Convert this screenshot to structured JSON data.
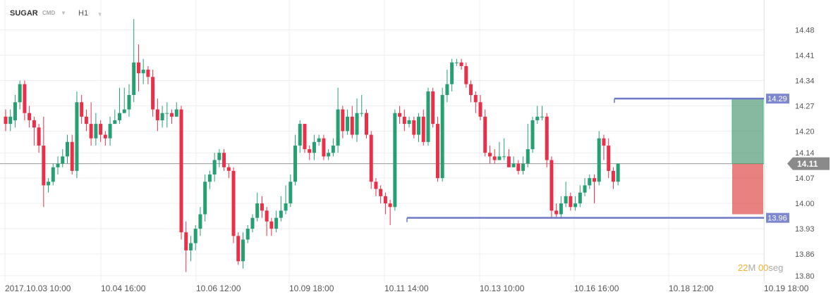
{
  "header": {
    "symbol": "SUGAR",
    "market": "CMD",
    "timeframe": "H1"
  },
  "timer": {
    "minutes": "22",
    "minutes_unit": "M",
    "seconds": "00",
    "seconds_unit": "seg"
  },
  "chart_data": {
    "type": "candlestick",
    "title": "",
    "y_ticks": [
      14.48,
      14.41,
      14.34,
      14.27,
      14.2,
      14.14,
      14.07,
      14.0,
      13.93,
      13.86,
      13.8
    ],
    "ylim": [
      13.79,
      14.52
    ],
    "x_labels": [
      "2017.10.03 10:00",
      "10.04 16:00",
      "10.06 12:00",
      "10.09 18:00",
      "10.11 14:00",
      "10.13 10:00",
      "10.16 16:00",
      "10.18 12:00",
      "10.19 18:00"
    ],
    "grid": true,
    "colors": {
      "up": "#26a073",
      "down": "#ea2f49",
      "level_line": "#6d79c8",
      "level_label_bg": "#7e88cf",
      "current_label_bg": "#8a8a8a",
      "tp_zone": "#3d8c66",
      "sl_zone": "#e04545"
    },
    "current_price": 14.11,
    "levels": [
      {
        "label": "14.29",
        "value": 14.29
      },
      {
        "label": "13.96",
        "value": 13.96
      }
    ],
    "position": {
      "entry": 14.11,
      "take_profit": 14.29,
      "stop_loss": 13.97
    },
    "candles": [
      [
        14.24,
        14.22,
        14.26,
        14.2
      ],
      [
        14.22,
        14.24,
        14.26,
        14.2
      ],
      [
        14.23,
        14.28,
        14.3,
        14.21
      ],
      [
        14.28,
        14.33,
        14.34,
        14.26
      ],
      [
        14.33,
        14.25,
        14.34,
        14.23
      ],
      [
        14.25,
        14.23,
        14.27,
        14.21
      ],
      [
        14.23,
        14.21,
        14.24,
        14.16
      ],
      [
        14.21,
        14.16,
        14.22,
        14.14
      ],
      [
        14.16,
        14.05,
        14.24,
        13.99
      ],
      [
        14.05,
        14.06,
        14.07,
        14.03
      ],
      [
        14.06,
        14.1,
        14.11,
        14.05
      ],
      [
        14.1,
        14.11,
        14.13,
        14.08
      ],
      [
        14.11,
        14.13,
        14.15,
        14.1
      ],
      [
        14.13,
        14.17,
        14.19,
        14.11
      ],
      [
        14.17,
        14.09,
        14.19,
        14.08
      ],
      [
        14.09,
        14.28,
        14.31,
        14.07
      ],
      [
        14.28,
        14.24,
        14.3,
        14.22
      ],
      [
        14.24,
        14.22,
        14.26,
        14.2
      ],
      [
        14.22,
        14.18,
        14.28,
        14.16
      ],
      [
        14.18,
        14.22,
        14.25,
        14.16
      ],
      [
        14.22,
        14.19,
        14.23,
        14.17
      ],
      [
        14.19,
        14.18,
        14.2,
        14.16
      ],
      [
        14.18,
        14.22,
        14.24,
        14.16
      ],
      [
        14.22,
        14.23,
        14.26,
        14.22
      ],
      [
        14.23,
        14.25,
        14.32,
        14.22
      ],
      [
        14.25,
        14.26,
        14.32,
        14.25
      ],
      [
        14.26,
        14.3,
        14.33,
        14.24
      ],
      [
        14.3,
        14.39,
        14.51,
        14.28
      ],
      [
        14.39,
        14.36,
        14.44,
        14.31
      ],
      [
        14.36,
        14.37,
        14.4,
        14.33
      ],
      [
        14.37,
        14.35,
        14.38,
        14.33
      ],
      [
        14.35,
        14.26,
        14.37,
        14.24
      ],
      [
        14.26,
        14.23,
        14.29,
        14.2
      ],
      [
        14.23,
        14.25,
        14.27,
        14.21
      ],
      [
        14.25,
        14.25,
        14.28,
        14.21
      ],
      [
        14.25,
        14.24,
        14.26,
        14.22
      ],
      [
        14.24,
        14.26,
        14.28,
        14.24
      ],
      [
        14.26,
        13.92,
        14.27,
        13.9
      ],
      [
        13.92,
        13.87,
        13.95,
        13.81
      ],
      [
        13.87,
        13.89,
        13.91,
        13.84
      ],
      [
        13.89,
        13.93,
        13.94,
        13.87
      ],
      [
        13.93,
        13.97,
        13.99,
        13.91
      ],
      [
        13.97,
        14.06,
        14.08,
        13.95
      ],
      [
        14.06,
        14.08,
        14.09,
        14.04
      ],
      [
        14.08,
        14.12,
        14.14,
        14.06
      ],
      [
        14.12,
        14.14,
        14.15,
        14.1
      ],
      [
        14.14,
        14.1,
        14.15,
        14.09
      ],
      [
        14.1,
        14.09,
        14.11,
        14.07
      ],
      [
        14.09,
        13.91,
        14.1,
        13.89
      ],
      [
        13.91,
        13.84,
        13.92,
        13.83
      ],
      [
        13.84,
        13.9,
        13.92,
        13.82
      ],
      [
        13.9,
        13.93,
        13.94,
        13.89
      ],
      [
        13.93,
        13.96,
        13.97,
        13.92
      ],
      [
        13.96,
        14.0,
        14.03,
        13.95
      ],
      [
        14.0,
        13.98,
        14.02,
        13.96
      ],
      [
        13.98,
        13.95,
        13.99,
        13.91
      ],
      [
        13.95,
        13.93,
        13.96,
        13.91
      ],
      [
        13.93,
        13.96,
        13.98,
        13.92
      ],
      [
        13.96,
        13.98,
        14.02,
        13.95
      ],
      [
        13.98,
        14.0,
        14.05,
        13.97
      ],
      [
        14.0,
        14.06,
        14.08,
        13.99
      ],
      [
        14.06,
        14.16,
        14.19,
        14.05
      ],
      [
        14.16,
        14.22,
        14.23,
        14.14
      ],
      [
        14.22,
        14.15,
        14.22,
        14.14
      ],
      [
        14.15,
        14.14,
        14.16,
        14.12
      ],
      [
        14.14,
        14.17,
        14.19,
        14.12
      ],
      [
        14.17,
        14.18,
        14.19,
        14.16
      ],
      [
        14.18,
        14.13,
        14.19,
        14.12
      ],
      [
        14.13,
        14.14,
        14.15,
        14.12
      ],
      [
        14.14,
        14.16,
        14.18,
        14.13
      ],
      [
        14.16,
        14.26,
        14.32,
        14.14
      ],
      [
        14.26,
        14.2,
        14.27,
        14.18
      ],
      [
        14.2,
        14.24,
        14.26,
        14.19
      ],
      [
        14.24,
        14.19,
        14.27,
        14.18
      ],
      [
        14.19,
        14.25,
        14.29,
        14.17
      ],
      [
        14.25,
        14.25,
        14.3,
        14.24
      ],
      [
        14.25,
        14.19,
        14.26,
        14.18
      ],
      [
        14.19,
        14.06,
        14.2,
        14.04
      ],
      [
        14.06,
        14.04,
        14.07,
        14.02
      ],
      [
        14.04,
        14.02,
        14.05,
        14.0
      ],
      [
        14.02,
        14.0,
        14.03,
        13.97
      ],
      [
        14.0,
        13.99,
        14.01,
        13.94
      ],
      [
        13.99,
        14.25,
        14.26,
        13.98
      ],
      [
        14.25,
        14.24,
        14.27,
        14.22
      ],
      [
        14.24,
        14.22,
        14.26,
        14.2
      ],
      [
        14.22,
        14.23,
        14.24,
        14.21
      ],
      [
        14.23,
        14.19,
        14.24,
        14.18
      ],
      [
        14.19,
        14.24,
        14.25,
        14.17
      ],
      [
        14.24,
        14.17,
        14.26,
        14.16
      ],
      [
        14.17,
        14.31,
        14.32,
        14.16
      ],
      [
        14.31,
        14.22,
        14.32,
        14.21
      ],
      [
        14.22,
        14.07,
        14.24,
        14.06
      ],
      [
        14.07,
        14.3,
        14.32,
        14.06
      ],
      [
        14.3,
        14.33,
        14.37,
        14.28
      ],
      [
        14.33,
        14.39,
        14.4,
        14.31
      ],
      [
        14.39,
        14.39,
        14.4,
        14.38
      ],
      [
        14.39,
        14.38,
        14.4,
        14.37
      ],
      [
        14.38,
        14.33,
        14.39,
        14.32
      ],
      [
        14.33,
        14.3,
        14.34,
        14.28
      ],
      [
        14.3,
        14.28,
        14.31,
        14.25
      ],
      [
        14.28,
        14.24,
        14.3,
        14.23
      ],
      [
        14.24,
        14.14,
        14.26,
        14.13
      ],
      [
        14.14,
        14.13,
        14.16,
        14.11
      ],
      [
        14.13,
        14.12,
        14.15,
        14.11
      ],
      [
        14.12,
        14.13,
        14.17,
        14.12
      ],
      [
        14.13,
        14.13,
        14.18,
        14.12
      ],
      [
        14.13,
        14.1,
        14.15,
        14.1
      ],
      [
        14.1,
        14.11,
        14.13,
        14.1
      ],
      [
        14.11,
        14.09,
        14.12,
        14.08
      ],
      [
        14.09,
        14.11,
        14.13,
        14.08
      ],
      [
        14.11,
        14.15,
        14.22,
        14.1
      ],
      [
        14.15,
        14.23,
        14.24,
        14.14
      ],
      [
        14.23,
        14.24,
        14.27,
        14.22
      ],
      [
        14.24,
        14.24,
        14.27,
        14.23
      ],
      [
        14.24,
        14.12,
        14.25,
        14.1
      ],
      [
        14.12,
        13.98,
        14.13,
        13.96
      ],
      [
        13.98,
        13.97,
        14.0,
        13.96
      ],
      [
        13.97,
        14.0,
        14.02,
        13.96
      ],
      [
        14.0,
        14.02,
        14.06,
        13.99
      ],
      [
        14.02,
        13.99,
        14.03,
        13.98
      ],
      [
        13.99,
        14.0,
        14.02,
        13.98
      ],
      [
        14.0,
        14.03,
        14.05,
        13.99
      ],
      [
        14.03,
        14.05,
        14.07,
        14.02
      ],
      [
        14.05,
        14.07,
        14.08,
        14.04
      ],
      [
        14.07,
        14.06,
        14.08,
        14.0
      ],
      [
        14.06,
        14.18,
        14.2,
        14.05
      ],
      [
        14.18,
        14.16,
        14.19,
        14.12
      ],
      [
        14.16,
        14.09,
        14.18,
        14.07
      ],
      [
        14.09,
        14.06,
        14.1,
        14.04
      ],
      [
        14.06,
        14.11,
        14.11,
        14.05
      ]
    ]
  }
}
